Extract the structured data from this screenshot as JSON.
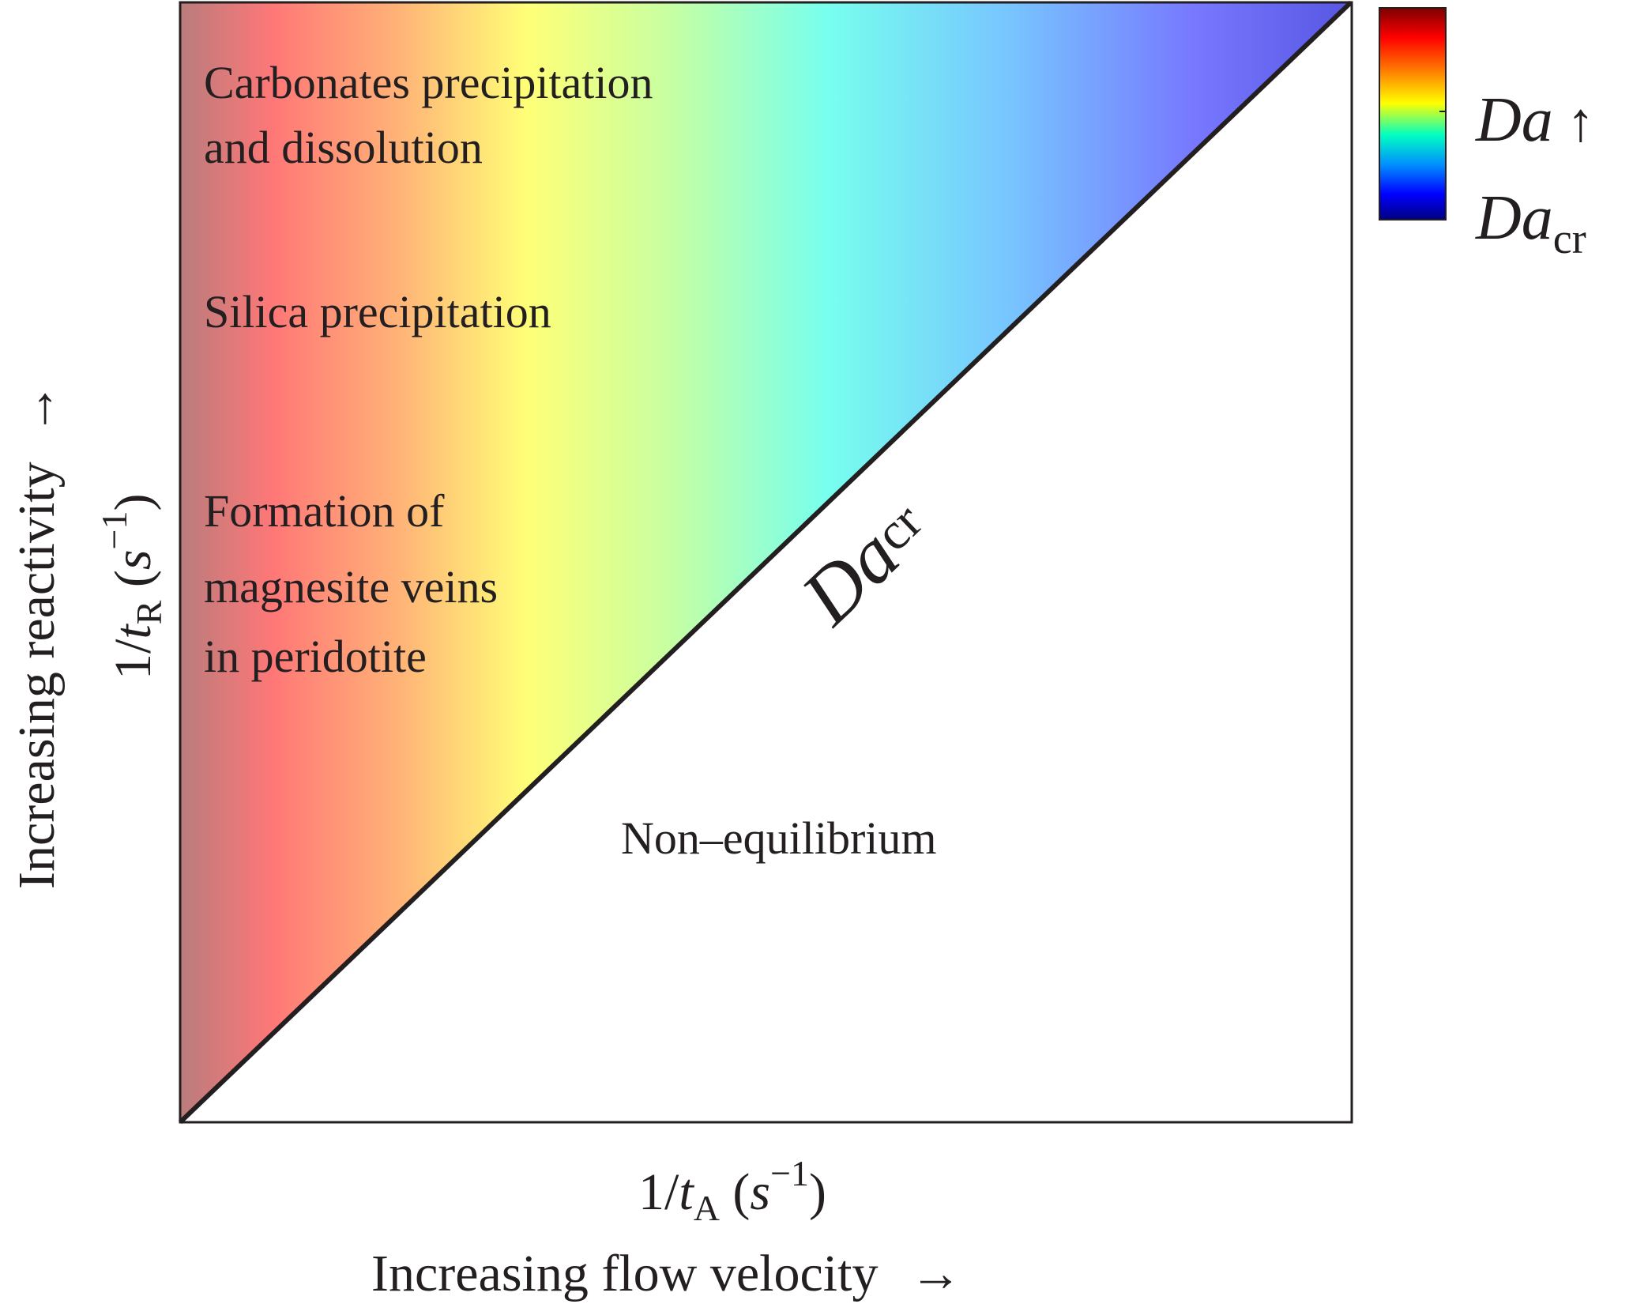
{
  "diagram": {
    "x_axis": {
      "quantity_prefix": "1/",
      "quantity_var": "t",
      "quantity_sub": "A",
      "unit_open": " (",
      "unit_var": "s",
      "unit_exp": "−1",
      "unit_close": ")",
      "caption": "Increasing flow velocity",
      "arrow": "→"
    },
    "y_axis": {
      "quantity_prefix": "1/",
      "quantity_var": "t",
      "quantity_sub": "R",
      "unit_open": " (",
      "unit_var": "s",
      "unit_exp": "−1",
      "unit_close": ")",
      "caption": "Increasing reactivity",
      "arrow": "→"
    },
    "regions": [
      {
        "lines": [
          "Carbonates precipitation",
          "and dissolution"
        ]
      },
      {
        "lines": [
          "Silica precipitation"
        ]
      },
      {
        "lines": [
          "Formation of",
          "magnesite veins",
          "in peridotite"
        ]
      },
      {
        "lines": [
          "Non–equilibrium"
        ]
      }
    ],
    "critical_line": {
      "var": "Da",
      "sub": "cr",
      "color": "#231f20"
    },
    "colorbar": {
      "top_var": "Da",
      "top_arrow": " ↑",
      "bottom_var": "Da",
      "bottom_sub": "cr",
      "colors": [
        "#7d0000",
        "#ff0000",
        "#ff8000",
        "#ffff00",
        "#00ffc0",
        "#0090ff",
        "#0000ff",
        "#000080"
      ]
    },
    "gradient_colors": [
      "#b97c7c",
      "#ff7777",
      "#ffb377",
      "#ffff77",
      "#c9ffa0",
      "#77ffee",
      "#77c4ff",
      "#7777ff",
      "#5a5ae6"
    ]
  }
}
